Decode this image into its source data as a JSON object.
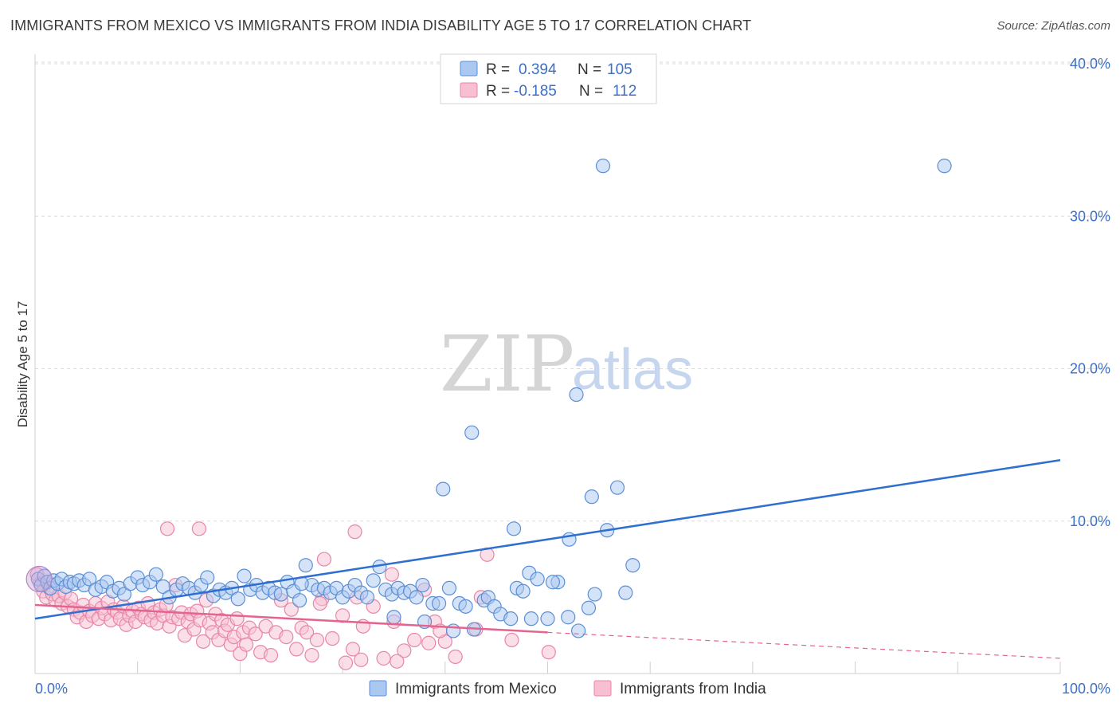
{
  "title": "IMMIGRANTS FROM MEXICO VS IMMIGRANTS FROM INDIA DISABILITY AGE 5 TO 17 CORRELATION CHART",
  "source": "Source: ZipAtlas.com",
  "watermark": {
    "zip": "ZIP",
    "atlas": "atlas"
  },
  "colors": {
    "mexico_fill": "#aac8f0",
    "mexico_stroke": "#5b8fd6",
    "mexico_line": "#2f6fd0",
    "india_fill": "#f8bfd2",
    "india_stroke": "#e886a8",
    "india_line": "#e3648f",
    "tick_text": "#3d6fc4",
    "grid": "#dcdcdc"
  },
  "legend": {
    "rows": [
      {
        "r_label": "R =",
        "r_value": "0.394",
        "n_label": "N =",
        "n_value": "105"
      },
      {
        "r_label": "R =",
        "r_value": "-0.185",
        "n_label": "N =",
        "n_value": "112"
      }
    ]
  },
  "chart_data": {
    "type": "scatter",
    "title": "IMMIGRANTS FROM MEXICO VS IMMIGRANTS FROM INDIA DISABILITY AGE 5 TO 17 CORRELATION CHART",
    "xlabel": "",
    "ylabel": "Disability Age 5 to 17",
    "xlim": [
      0,
      100
    ],
    "ylim": [
      0,
      40
    ],
    "x_tick_labels": [
      "0.0%",
      "100.0%"
    ],
    "y_ticks": [
      10,
      20,
      30,
      40
    ],
    "y_tick_labels": [
      "10.0%",
      "20.0%",
      "30.0%",
      "40.0%"
    ],
    "series": [
      {
        "name": "Immigrants from Mexico",
        "r": 0.394,
        "n": 105,
        "trend": {
          "x": [
            0,
            100
          ],
          "y": [
            3.6,
            14.0
          ]
        },
        "points": [
          [
            0.3,
            6.2
          ],
          [
            0.6,
            5.8
          ],
          [
            0.9,
            6.4
          ],
          [
            1.2,
            6.0
          ],
          [
            1.5,
            5.6
          ],
          [
            1.8,
            6.1
          ],
          [
            2.2,
            5.9
          ],
          [
            2.6,
            6.2
          ],
          [
            3.0,
            5.7
          ],
          [
            3.4,
            6.0
          ],
          [
            3.8,
            5.9
          ],
          [
            4.3,
            6.1
          ],
          [
            4.8,
            5.8
          ],
          [
            5.3,
            6.2
          ],
          [
            5.9,
            5.5
          ],
          [
            6.5,
            5.7
          ],
          [
            7.0,
            6.0
          ],
          [
            7.6,
            5.4
          ],
          [
            8.2,
            5.6
          ],
          [
            8.7,
            5.2
          ],
          [
            9.3,
            5.9
          ],
          [
            10.0,
            6.3
          ],
          [
            10.5,
            5.8
          ],
          [
            11.2,
            6.0
          ],
          [
            11.8,
            6.5
          ],
          [
            12.5,
            5.7
          ],
          [
            13.1,
            5.0
          ],
          [
            13.8,
            5.5
          ],
          [
            14.4,
            5.9
          ],
          [
            15.0,
            5.6
          ],
          [
            15.6,
            5.3
          ],
          [
            16.2,
            5.8
          ],
          [
            16.8,
            6.3
          ],
          [
            17.4,
            5.1
          ],
          [
            18.0,
            5.5
          ],
          [
            18.6,
            5.3
          ],
          [
            19.2,
            5.6
          ],
          [
            19.8,
            4.9
          ],
          [
            20.4,
            6.4
          ],
          [
            21.0,
            5.5
          ],
          [
            21.6,
            5.8
          ],
          [
            22.2,
            5.3
          ],
          [
            22.8,
            5.6
          ],
          [
            23.4,
            5.3
          ],
          [
            24.0,
            5.2
          ],
          [
            24.6,
            6.0
          ],
          [
            25.2,
            5.4
          ],
          [
            25.8,
            4.8
          ],
          [
            26.4,
            7.1
          ],
          [
            27.0,
            5.8
          ],
          [
            27.6,
            5.5
          ],
          [
            28.2,
            5.6
          ],
          [
            28.8,
            5.3
          ],
          [
            29.4,
            5.6
          ],
          [
            30.0,
            5.0
          ],
          [
            30.6,
            5.4
          ],
          [
            31.2,
            5.8
          ],
          [
            31.8,
            5.3
          ],
          [
            32.4,
            5.0
          ],
          [
            33.0,
            6.1
          ],
          [
            33.6,
            7.0
          ],
          [
            34.2,
            5.5
          ],
          [
            34.8,
            5.2
          ],
          [
            35.4,
            5.6
          ],
          [
            36.0,
            5.3
          ],
          [
            36.6,
            5.4
          ],
          [
            37.2,
            5.0
          ],
          [
            37.8,
            5.8
          ],
          [
            26.0,
            5.9
          ],
          [
            35.0,
            3.7
          ],
          [
            38.0,
            3.4
          ],
          [
            38.8,
            4.6
          ],
          [
            39.4,
            4.6
          ],
          [
            40.4,
            5.6
          ],
          [
            40.8,
            2.8
          ],
          [
            41.4,
            4.6
          ],
          [
            42.0,
            4.4
          ],
          [
            42.8,
            2.9
          ],
          [
            43.8,
            4.8
          ],
          [
            44.2,
            5.0
          ],
          [
            44.8,
            4.4
          ],
          [
            45.4,
            3.9
          ],
          [
            46.4,
            3.6
          ],
          [
            47.0,
            5.6
          ],
          [
            47.6,
            5.4
          ],
          [
            48.2,
            6.6
          ],
          [
            49.0,
            6.2
          ],
          [
            48.4,
            3.6
          ],
          [
            50.0,
            3.6
          ],
          [
            51.0,
            6.0
          ],
          [
            52.0,
            3.7
          ],
          [
            53.0,
            2.8
          ],
          [
            54.0,
            4.3
          ],
          [
            50.5,
            6.0
          ],
          [
            54.6,
            5.2
          ],
          [
            57.6,
            5.3
          ],
          [
            55.8,
            9.4
          ],
          [
            52.1,
            8.8
          ],
          [
            46.7,
            9.5
          ],
          [
            39.8,
            12.1
          ],
          [
            54.3,
            11.6
          ],
          [
            56.8,
            12.2
          ],
          [
            55.4,
            33.3
          ],
          [
            88.7,
            33.3
          ],
          [
            52.8,
            18.3
          ],
          [
            42.6,
            15.8
          ],
          [
            58.3,
            7.1
          ]
        ]
      },
      {
        "name": "Immigrants from India",
        "r": -0.185,
        "n": 112,
        "trend": {
          "x": [
            0,
            50
          ],
          "y": [
            4.5,
            2.7
          ]
        },
        "trend_extension": {
          "x": [
            50,
            100
          ],
          "y": [
            2.7,
            1.0
          ]
        },
        "points": [
          [
            0.2,
            6.5
          ],
          [
            0.5,
            5.9
          ],
          [
            0.8,
            5.4
          ],
          [
            1.1,
            5.0
          ],
          [
            1.4,
            5.6
          ],
          [
            1.7,
            5.2
          ],
          [
            2.0,
            4.8
          ],
          [
            2.3,
            5.1
          ],
          [
            2.6,
            4.6
          ],
          [
            2.9,
            5.3
          ],
          [
            3.2,
            4.4
          ],
          [
            3.5,
            4.9
          ],
          [
            3.8,
            4.2
          ],
          [
            4.1,
            3.7
          ],
          [
            4.4,
            4.0
          ],
          [
            4.7,
            4.5
          ],
          [
            5.0,
            3.4
          ],
          [
            5.3,
            4.1
          ],
          [
            5.6,
            3.8
          ],
          [
            5.9,
            4.6
          ],
          [
            6.2,
            3.6
          ],
          [
            6.5,
            4.3
          ],
          [
            6.8,
            3.9
          ],
          [
            7.1,
            4.7
          ],
          [
            7.4,
            3.5
          ],
          [
            7.7,
            4.2
          ],
          [
            8.0,
            4.0
          ],
          [
            8.3,
            3.6
          ],
          [
            8.6,
            4.4
          ],
          [
            8.9,
            3.2
          ],
          [
            9.2,
            3.8
          ],
          [
            9.5,
            4.1
          ],
          [
            9.8,
            3.4
          ],
          [
            10.1,
            4.3
          ],
          [
            10.4,
            3.9
          ],
          [
            10.7,
            3.7
          ],
          [
            11.0,
            4.6
          ],
          [
            11.3,
            3.5
          ],
          [
            11.6,
            4.0
          ],
          [
            11.9,
            3.3
          ],
          [
            12.2,
            4.2
          ],
          [
            12.5,
            3.8
          ],
          [
            12.8,
            4.5
          ],
          [
            13.1,
            3.1
          ],
          [
            13.4,
            3.7
          ],
          [
            13.7,
            5.8
          ],
          [
            14.0,
            3.6
          ],
          [
            14.3,
            4.0
          ],
          [
            14.6,
            2.5
          ],
          [
            14.9,
            3.4
          ],
          [
            15.2,
            3.9
          ],
          [
            15.5,
            2.9
          ],
          [
            15.8,
            4.1
          ],
          [
            16.1,
            3.5
          ],
          [
            16.4,
            2.1
          ],
          [
            16.7,
            4.8
          ],
          [
            17.0,
            3.3
          ],
          [
            17.3,
            2.7
          ],
          [
            17.6,
            3.9
          ],
          [
            17.9,
            2.2
          ],
          [
            18.2,
            3.5
          ],
          [
            18.5,
            2.8
          ],
          [
            18.8,
            3.2
          ],
          [
            19.1,
            1.9
          ],
          [
            19.4,
            2.4
          ],
          [
            19.7,
            3.6
          ],
          [
            20.0,
            1.3
          ],
          [
            20.3,
            2.7
          ],
          [
            20.6,
            1.9
          ],
          [
            20.9,
            3.0
          ],
          [
            21.5,
            2.6
          ],
          [
            22.0,
            1.4
          ],
          [
            22.5,
            3.1
          ],
          [
            23.0,
            1.2
          ],
          [
            23.5,
            2.7
          ],
          [
            24.0,
            4.8
          ],
          [
            24.5,
            2.4
          ],
          [
            25.0,
            4.2
          ],
          [
            25.5,
            1.6
          ],
          [
            26.0,
            3.0
          ],
          [
            26.5,
            2.7
          ],
          [
            27.0,
            1.2
          ],
          [
            27.5,
            2.2
          ],
          [
            28.0,
            4.9
          ],
          [
            29.0,
            2.3
          ],
          [
            30.0,
            3.8
          ],
          [
            31.0,
            1.6
          ],
          [
            32.0,
            3.1
          ],
          [
            33.0,
            4.4
          ],
          [
            34.0,
            1.0
          ],
          [
            35.0,
            3.4
          ],
          [
            36.0,
            1.5
          ],
          [
            37.0,
            2.2
          ],
          [
            38.0,
            5.5
          ],
          [
            39.0,
            3.4
          ],
          [
            40.0,
            2.1
          ],
          [
            41.0,
            1.1
          ],
          [
            28.2,
            7.5
          ],
          [
            31.2,
            9.3
          ],
          [
            35.3,
            0.8
          ],
          [
            31.8,
            0.9
          ],
          [
            30.3,
            0.7
          ],
          [
            39.5,
            2.8
          ],
          [
            43.0,
            2.9
          ],
          [
            46.5,
            2.2
          ],
          [
            50.1,
            1.4
          ],
          [
            12.9,
            9.5
          ],
          [
            16.0,
            9.5
          ],
          [
            31.4,
            5.0
          ],
          [
            34.8,
            6.5
          ],
          [
            38.4,
            2.0
          ],
          [
            44.1,
            7.8
          ],
          [
            43.5,
            5.0
          ],
          [
            27.8,
            4.6
          ]
        ]
      }
    ]
  },
  "bottom_legend": {
    "items": [
      {
        "label": "Immigrants from Mexico"
      },
      {
        "label": "Immigrants from India"
      }
    ]
  }
}
